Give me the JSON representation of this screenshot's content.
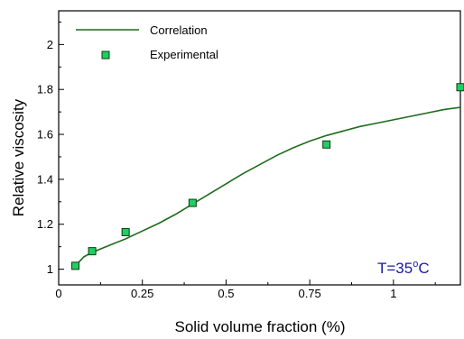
{
  "chart_data": {
    "type": "line",
    "xlabel": "Solid volume fraction (%)",
    "ylabel": "Relative viscosity",
    "xlim": [
      0,
      1.2
    ],
    "ylim": [
      0.93,
      2.15
    ],
    "x_ticks": [
      0,
      0.25,
      0.5,
      0.75,
      1
    ],
    "x_tick_labels": [
      "0",
      "0.25",
      "0.5",
      "0.75",
      "1"
    ],
    "y_ticks": [
      1,
      1.2,
      1.4,
      1.6,
      1.8,
      2
    ],
    "y_tick_labels": [
      "1",
      "1.2",
      "1.4",
      "1.6",
      "1.8",
      "2"
    ],
    "grid": false,
    "legend_position": "top-left",
    "colors": {
      "correlation_line": "#1e6b1e",
      "marker_fill": "#22cc66",
      "marker_edge": "#0a3d0a",
      "annotation": "#1a1aa0"
    },
    "annotation": {
      "text": "T=35",
      "superscript": "o",
      "unit": "C"
    },
    "series": [
      {
        "name": "Correlation",
        "style": "line",
        "x": [
          0.05,
          0.075,
          0.1,
          0.15,
          0.2,
          0.25,
          0.3,
          0.35,
          0.4,
          0.45,
          0.5,
          0.55,
          0.6,
          0.65,
          0.7,
          0.75,
          0.8,
          0.85,
          0.9,
          0.95,
          1.0,
          1.05,
          1.1,
          1.15,
          1.2
        ],
        "y": [
          1.015,
          1.055,
          1.075,
          1.105,
          1.135,
          1.17,
          1.205,
          1.245,
          1.29,
          1.335,
          1.38,
          1.425,
          1.465,
          1.505,
          1.54,
          1.57,
          1.595,
          1.615,
          1.635,
          1.65,
          1.665,
          1.68,
          1.695,
          1.71,
          1.72
        ]
      },
      {
        "name": "Experimental",
        "style": "marker",
        "x": [
          0.05,
          0.1,
          0.2,
          0.4,
          0.8,
          1.2
        ],
        "y": [
          1.015,
          1.08,
          1.165,
          1.295,
          1.555,
          1.81
        ]
      }
    ]
  }
}
